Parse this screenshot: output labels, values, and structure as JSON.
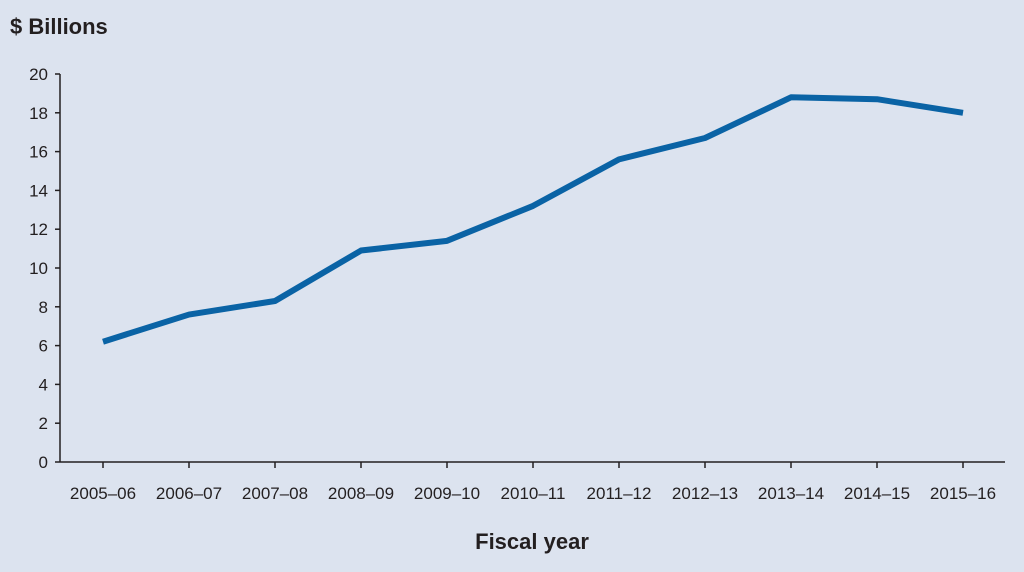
{
  "chart_data": {
    "type": "line",
    "title": "",
    "ylabel": "$ Billions",
    "xlabel": "Fiscal year",
    "categories": [
      "2005–06",
      "2006–07",
      "2007–08",
      "2008–09",
      "2009–10",
      "2010–11",
      "2011–12",
      "2012–13",
      "2013–14",
      "2014–15",
      "2015–16"
    ],
    "series": [
      {
        "values": [
          6.2,
          7.6,
          8.3,
          10.9,
          11.4,
          13.2,
          15.6,
          16.7,
          18.8,
          18.7,
          18.0
        ],
        "color": "#0a63a5"
      }
    ],
    "ylim": [
      0,
      20
    ],
    "yticks": [
      "0",
      "2",
      "4",
      "6",
      "8",
      "10",
      "12",
      "14",
      "16",
      "18",
      "20"
    ],
    "grid": false,
    "legend": "none",
    "background_color": "#dce3ef",
    "axis_color": "#231f20"
  }
}
